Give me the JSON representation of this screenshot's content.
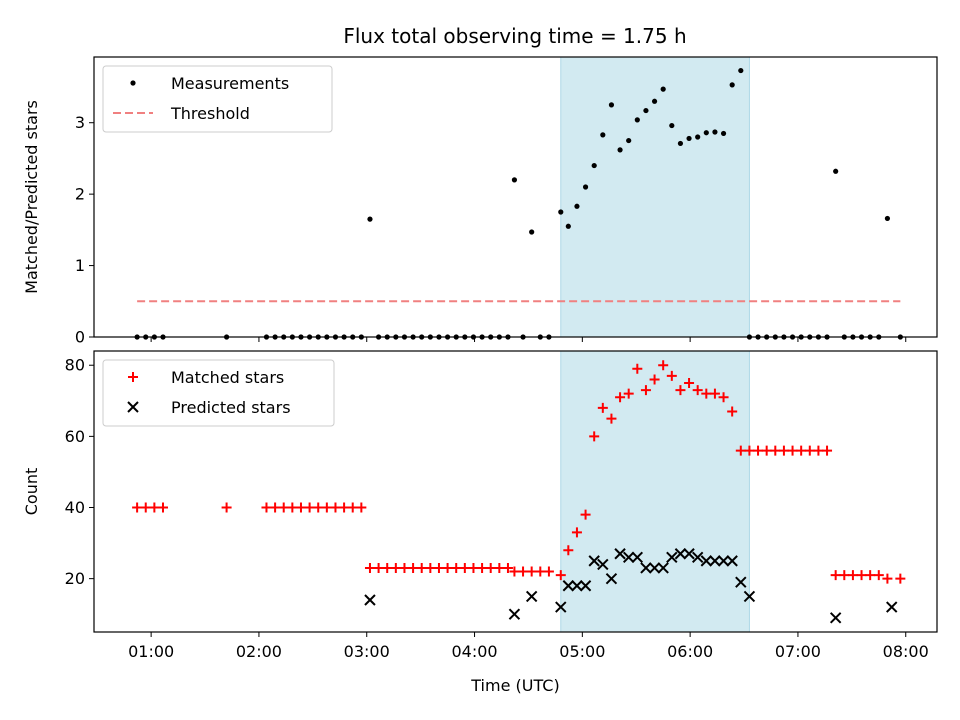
{
  "chart_data": {
    "title": "Flux total observing time = 1.75 h",
    "xlabel": "Time (UTC)",
    "x_ticks": [
      "01:00",
      "02:00",
      "03:00",
      "04:00",
      "05:00",
      "06:00",
      "07:00",
      "08:00"
    ],
    "x_tick_hours": [
      1,
      2,
      3,
      4,
      5,
      6,
      7,
      8
    ],
    "xlim_hours": [
      0.47,
      8.29
    ],
    "observing_window_hours": [
      4.8,
      6.55
    ],
    "window_color": "#add8e6",
    "panels": [
      {
        "type": "scatter",
        "ylabel": "Matched/Predicted stars",
        "ylim": [
          0,
          3.92
        ],
        "y_ticks": [
          0,
          1,
          2,
          3
        ],
        "legend_position": "top-left",
        "series": [
          {
            "name": "Measurements",
            "marker": "dot",
            "color": "#000000",
            "x_hours": [
              0.87,
              0.95,
              1.03,
              1.11,
              1.7,
              2.07,
              2.15,
              2.23,
              2.31,
              2.39,
              2.47,
              2.55,
              2.63,
              2.71,
              2.79,
              2.87,
              2.95,
              3.03,
              3.11,
              3.19,
              3.27,
              3.35,
              3.43,
              3.51,
              3.59,
              3.67,
              3.75,
              3.83,
              3.91,
              3.99,
              4.07,
              4.15,
              4.23,
              4.31,
              4.37,
              4.45,
              4.53,
              4.61,
              4.69,
              4.8,
              4.87,
              4.95,
              5.03,
              5.11,
              5.19,
              5.27,
              5.35,
              5.43,
              5.51,
              5.59,
              5.67,
              5.75,
              5.83,
              5.91,
              5.99,
              6.07,
              6.15,
              6.23,
              6.31,
              6.39,
              6.47,
              6.55,
              6.63,
              6.71,
              6.79,
              6.87,
              6.95,
              7.03,
              7.11,
              7.19,
              7.27,
              7.35,
              7.43,
              7.51,
              7.59,
              7.67,
              7.75,
              7.83,
              7.95
            ],
            "y": [
              0,
              0,
              0,
              0,
              0,
              0,
              0,
              0,
              0,
              0,
              0,
              0,
              0,
              0,
              0,
              0,
              0,
              1.65,
              0,
              0,
              0,
              0,
              0,
              0,
              0,
              0,
              0,
              0,
              0,
              0,
              0,
              0,
              0,
              0,
              2.2,
              0,
              1.47,
              0,
              0,
              1.75,
              1.55,
              1.83,
              2.1,
              2.4,
              2.83,
              3.25,
              2.62,
              2.75,
              3.04,
              3.17,
              3.3,
              3.47,
              2.96,
              2.71,
              2.78,
              2.8,
              2.86,
              2.87,
              2.85,
              3.53,
              3.73,
              0,
              0,
              0,
              0,
              0,
              0,
              0,
              0,
              0,
              0,
              2.32,
              0,
              0,
              0,
              0,
              0,
              1.66,
              0
            ]
          },
          {
            "name": "Threshold",
            "style": "dashed",
            "color": "#f08080",
            "x_hours": [
              0.87,
              7.95
            ],
            "y": [
              0.5,
              0.5
            ]
          }
        ]
      },
      {
        "type": "scatter",
        "ylabel": "Count",
        "ylim": [
          5,
          84
        ],
        "y_ticks": [
          20,
          40,
          60,
          80
        ],
        "legend_position": "top-left",
        "series": [
          {
            "name": "Matched stars",
            "marker": "plus",
            "color": "#ff0000",
            "x_hours": [
              0.87,
              0.95,
              1.03,
              1.11,
              1.7,
              2.07,
              2.15,
              2.23,
              2.31,
              2.39,
              2.47,
              2.55,
              2.63,
              2.71,
              2.79,
              2.87,
              2.95,
              3.03,
              3.11,
              3.19,
              3.27,
              3.35,
              3.43,
              3.51,
              3.59,
              3.67,
              3.75,
              3.83,
              3.91,
              3.99,
              4.07,
              4.15,
              4.23,
              4.31,
              4.37,
              4.45,
              4.53,
              4.61,
              4.69,
              4.8,
              4.87,
              4.95,
              5.03,
              5.11,
              5.19,
              5.27,
              5.35,
              5.43,
              5.51,
              5.59,
              5.67,
              5.75,
              5.83,
              5.91,
              5.99,
              6.07,
              6.15,
              6.23,
              6.31,
              6.39,
              6.47,
              6.55,
              6.63,
              6.71,
              6.79,
              6.87,
              6.95,
              7.03,
              7.11,
              7.19,
              7.27,
              7.35,
              7.43,
              7.51,
              7.59,
              7.67,
              7.75,
              7.83,
              7.95
            ],
            "y": [
              40,
              40,
              40,
              40,
              40,
              40,
              40,
              40,
              40,
              40,
              40,
              40,
              40,
              40,
              40,
              40,
              40,
              23,
              23,
              23,
              23,
              23,
              23,
              23,
              23,
              23,
              23,
              23,
              23,
              23,
              23,
              23,
              23,
              23,
              22,
              22,
              22,
              22,
              22,
              21,
              28,
              33,
              38,
              60,
              68,
              65,
              71,
              72,
              79,
              73,
              76,
              80,
              77,
              73,
              75,
              73,
              72,
              72,
              71,
              67,
              56,
              56,
              56,
              56,
              56,
              56,
              56,
              56,
              56,
              56,
              56,
              21,
              21,
              21,
              21,
              21,
              21,
              20,
              20
            ]
          },
          {
            "name": "Predicted stars",
            "marker": "x",
            "color": "#000000",
            "x_hours": [
              3.03,
              4.37,
              4.53,
              4.8,
              4.87,
              4.95,
              5.03,
              5.11,
              5.19,
              5.27,
              5.35,
              5.43,
              5.51,
              5.59,
              5.67,
              5.75,
              5.83,
              5.91,
              5.99,
              6.07,
              6.15,
              6.23,
              6.31,
              6.39,
              6.47,
              6.55,
              7.35,
              7.87
            ],
            "y": [
              14,
              10,
              15,
              12,
              18,
              18,
              18,
              25,
              24,
              20,
              27,
              26,
              26,
              23,
              23,
              23,
              26,
              27,
              27,
              26,
              25,
              25,
              25,
              25,
              19,
              15,
              9,
              12
            ]
          }
        ]
      }
    ]
  }
}
